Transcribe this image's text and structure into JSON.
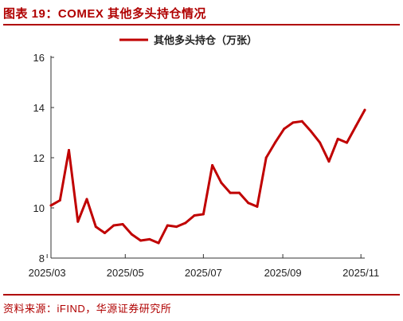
{
  "header": {
    "title": "图表 19：COMEX 其他多头持仓情况"
  },
  "footer": {
    "source": "资料来源：iFIND，华源证券研究所"
  },
  "colors": {
    "accent": "#b00000",
    "series": "#c00000"
  },
  "chart_data": {
    "type": "line",
    "title": "",
    "xlabel": "",
    "ylabel": "",
    "ylim": [
      8,
      16
    ],
    "yticks": [
      8,
      10,
      12,
      14,
      16
    ],
    "grid": false,
    "legend_position": "top-center",
    "xticks": [
      "2025/03",
      "2025/05",
      "2025/07",
      "2025/09",
      "2025/11"
    ],
    "series": [
      {
        "name": "其他多头持仓（万张）",
        "x": [
          "2025-03-04",
          "2025-03-11",
          "2025-03-18",
          "2025-03-25",
          "2025-04-01",
          "2025-04-08",
          "2025-04-15",
          "2025-04-22",
          "2025-04-29",
          "2025-05-06",
          "2025-05-13",
          "2025-05-20",
          "2025-05-27",
          "2025-06-03",
          "2025-06-10",
          "2025-06-17",
          "2025-06-24",
          "2025-07-01",
          "2025-07-08",
          "2025-07-15",
          "2025-07-22",
          "2025-07-29",
          "2025-08-05",
          "2025-08-12",
          "2025-08-19",
          "2025-08-26",
          "2025-09-02",
          "2025-09-09",
          "2025-09-16",
          "2025-09-23",
          "2025-09-30",
          "2025-10-07",
          "2025-10-14",
          "2025-10-21",
          "2025-10-28",
          "2025-11-04"
        ],
        "values": [
          10.1,
          10.3,
          12.3,
          9.45,
          10.35,
          9.25,
          9.0,
          9.3,
          9.35,
          8.95,
          8.7,
          8.75,
          8.6,
          9.3,
          9.25,
          9.4,
          9.7,
          9.75,
          11.7,
          11.0,
          10.6,
          10.6,
          10.2,
          10.05,
          12.0,
          12.6,
          13.15,
          13.4,
          13.45,
          13.05,
          12.6,
          11.85,
          12.75,
          12.6,
          13.25,
          13.9
        ]
      }
    ]
  }
}
